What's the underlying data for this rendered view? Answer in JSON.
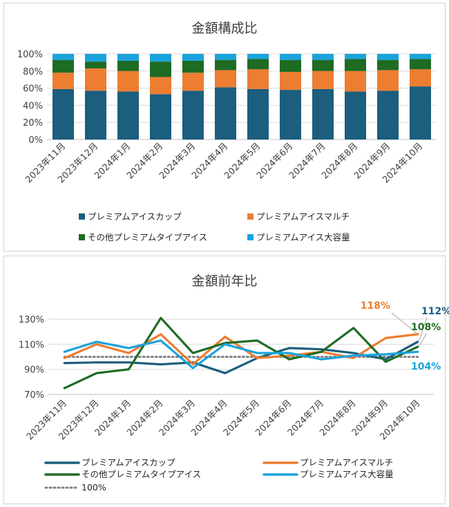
{
  "colors": {
    "cup": "#1b5e7e",
    "multi": "#ed7d31",
    "other": "#1e6b24",
    "large": "#1aa3dc",
    "ref": "#808080",
    "grid": "#d9d9d9",
    "axis": "#bfbfbf"
  },
  "chart_data": [
    {
      "type": "bar",
      "stacked": true,
      "title": "金額構成比",
      "categories": [
        "2023年11月",
        "2023年12月",
        "2024年1月",
        "2024年2月",
        "2024年3月",
        "2024年4月",
        "2024年5月",
        "2024年6月",
        "2024年7月",
        "2024年8月",
        "2024年9月",
        "2024年10月"
      ],
      "ylim": [
        0,
        100
      ],
      "yticks": [
        "0%",
        "20%",
        "40%",
        "60%",
        "80%",
        "100%"
      ],
      "grid": true,
      "legend_position": "bottom",
      "series": [
        {
          "name": "プレミアムアイスカップ",
          "color_key": "cup",
          "values": [
            59,
            57,
            56,
            53,
            57,
            61,
            59,
            58,
            59,
            56,
            57,
            62
          ]
        },
        {
          "name": "プレミアムアイスマルチ",
          "color_key": "multi",
          "values": [
            19,
            26,
            24,
            20,
            21,
            20,
            23,
            21,
            21,
            24,
            24,
            20
          ]
        },
        {
          "name": "その他プレミアムタイプアイス",
          "color_key": "other",
          "values": [
            15,
            8,
            12,
            18,
            14,
            12,
            12,
            14,
            13,
            14,
            12,
            12
          ]
        },
        {
          "name": "プレミアムアイス大容量",
          "color_key": "large",
          "values": [
            7,
            9,
            8,
            9,
            8,
            7,
            6,
            7,
            7,
            6,
            7,
            6
          ]
        }
      ]
    },
    {
      "type": "line",
      "title": "金額前年比",
      "categories": [
        "2023年11月",
        "2023年12月",
        "2024年1月",
        "2024年2月",
        "2024年3月",
        "2024年4月",
        "2024年5月",
        "2024年6月",
        "2024年7月",
        "2024年8月",
        "2024年9月",
        "2024年10月"
      ],
      "ylim": [
        70,
        140
      ],
      "yticks": [
        "70%",
        "90%",
        "110%",
        "130%"
      ],
      "grid": true,
      "legend_position": "bottom",
      "series": [
        {
          "name": "プレミアムアイスカップ",
          "color_key": "cup",
          "values": [
            95,
            95.5,
            95.5,
            94,
            95.5,
            87,
            99,
            107,
            106,
            103,
            98,
            112
          ],
          "end_label": "112%"
        },
        {
          "name": "プレミアムアイスマルチ",
          "color_key": "multi",
          "values": [
            99,
            110,
            103,
            118,
            94,
            116,
            99,
            101,
            104,
            99,
            115,
            118
          ],
          "end_label": "118%"
        },
        {
          "name": "その他プレミアムタイプアイス",
          "color_key": "other",
          "values": [
            75,
            87,
            90,
            131,
            103,
            111,
            113,
            98,
            104,
            123,
            96,
            108
          ],
          "end_label": "108%"
        },
        {
          "name": "プレミアムアイス大容量",
          "color_key": "large",
          "values": [
            104,
            112,
            107,
            113,
            91,
            110,
            103,
            103,
            98,
            101,
            102,
            104
          ],
          "end_label": "104%"
        },
        {
          "name": "100%",
          "color_key": "ref",
          "dotted": true,
          "values": [
            100,
            100,
            100,
            100,
            100,
            100,
            100,
            100,
            100,
            100,
            100,
            100
          ]
        }
      ]
    }
  ]
}
